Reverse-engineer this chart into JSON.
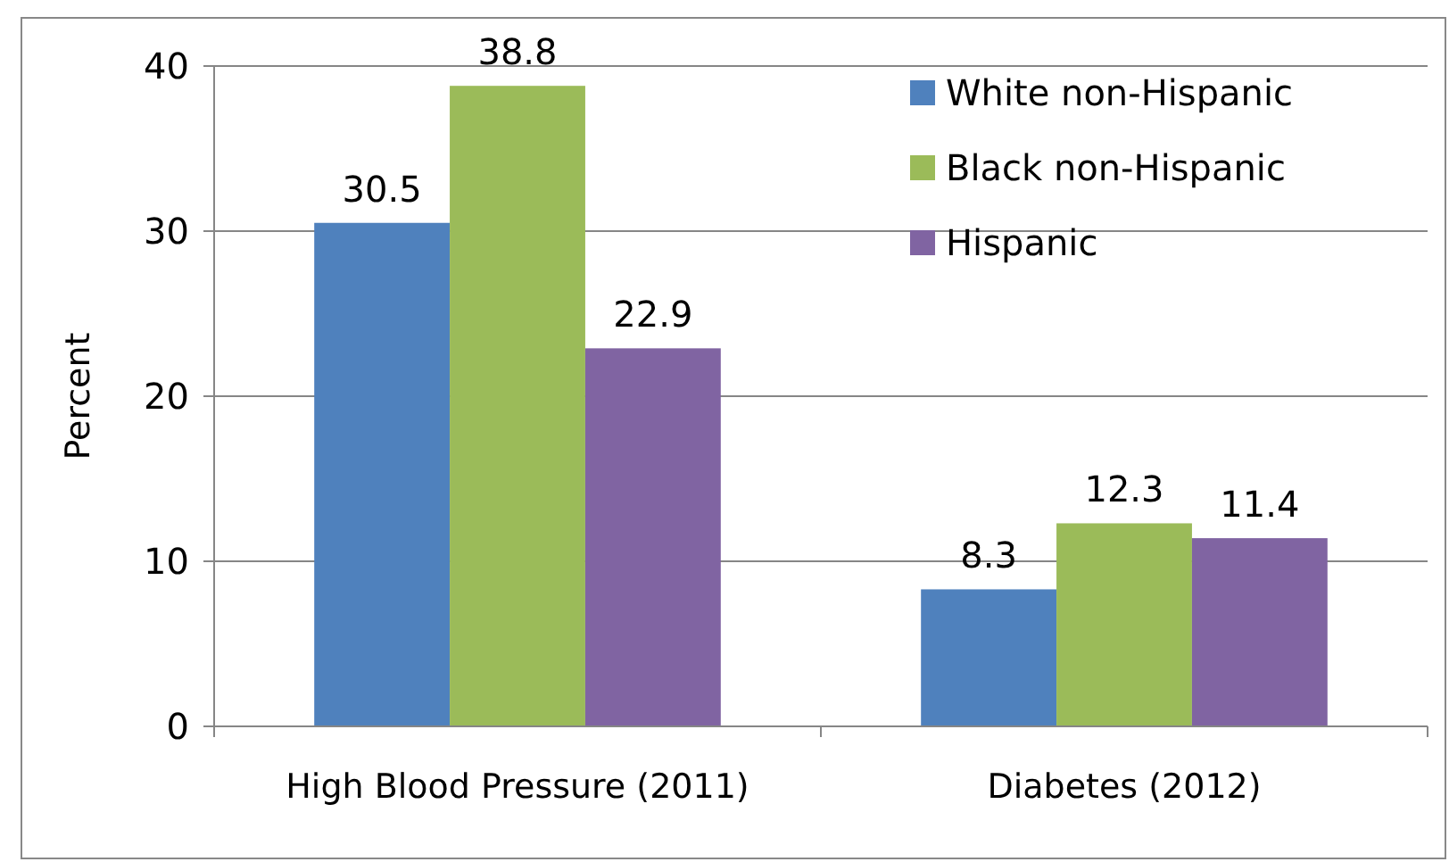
{
  "chart_data": {
    "type": "bar",
    "ylabel": "Percent",
    "categories": [
      "High Blood Pressure (2011)",
      "Diabetes (2012)"
    ],
    "series": [
      {
        "name": "White non-Hispanic",
        "color": "#4f81bd",
        "values": [
          30.5,
          8.3
        ]
      },
      {
        "name": "Black non-Hispanic",
        "color": "#9bbb59",
        "values": [
          38.8,
          12.3
        ]
      },
      {
        "name": "Hispanic",
        "color": "#8064a2",
        "values": [
          22.9,
          11.4
        ]
      }
    ],
    "ylim": [
      0,
      40
    ],
    "yticks": [
      0,
      10,
      20,
      30,
      40
    ],
    "grid": "y",
    "legend": "top right",
    "data_labels": true
  }
}
